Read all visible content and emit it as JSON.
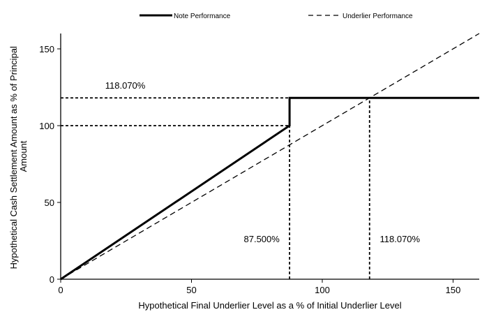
{
  "chart_data": {
    "type": "line",
    "xlabel": "Hypothetical Final Underlier Level as a % of Initial Underlier Level",
    "ylabel_lines": [
      "Hypothetical Cash Settlement Amount as % of Principal",
      "Amount"
    ],
    "xlim": [
      0,
      160
    ],
    "ylim": [
      0,
      160
    ],
    "xticks": [
      0,
      50,
      100,
      150
    ],
    "yticks": [
      0,
      50,
      100,
      150
    ],
    "legend_position": "top",
    "series": [
      {
        "name": "Note Performance",
        "style": "solid",
        "color": "#000000",
        "x": [
          0,
          87.5,
          87.5,
          160
        ],
        "y": [
          0,
          100,
          118.07,
          118.07
        ]
      },
      {
        "name": "Underlier Performance",
        "style": "dashed",
        "color": "#000000",
        "x": [
          0,
          160
        ],
        "y": [
          0,
          160
        ]
      }
    ],
    "reference_lines": [
      {
        "x": [
          0,
          87.5
        ],
        "y": [
          100,
          100
        ]
      },
      {
        "x": [
          0,
          118.07
        ],
        "y": [
          118.07,
          118.07
        ]
      },
      {
        "x": [
          87.5,
          87.5
        ],
        "y": [
          0,
          100
        ]
      },
      {
        "x": [
          118.07,
          118.07
        ],
        "y": [
          0,
          118.07
        ]
      }
    ],
    "annotations": [
      {
        "text": "118.070%",
        "x": 17,
        "y": 124
      },
      {
        "text": "87.500%",
        "x": 70,
        "y": 24
      },
      {
        "text": "118.070%",
        "x": 122,
        "y": 24
      }
    ]
  }
}
